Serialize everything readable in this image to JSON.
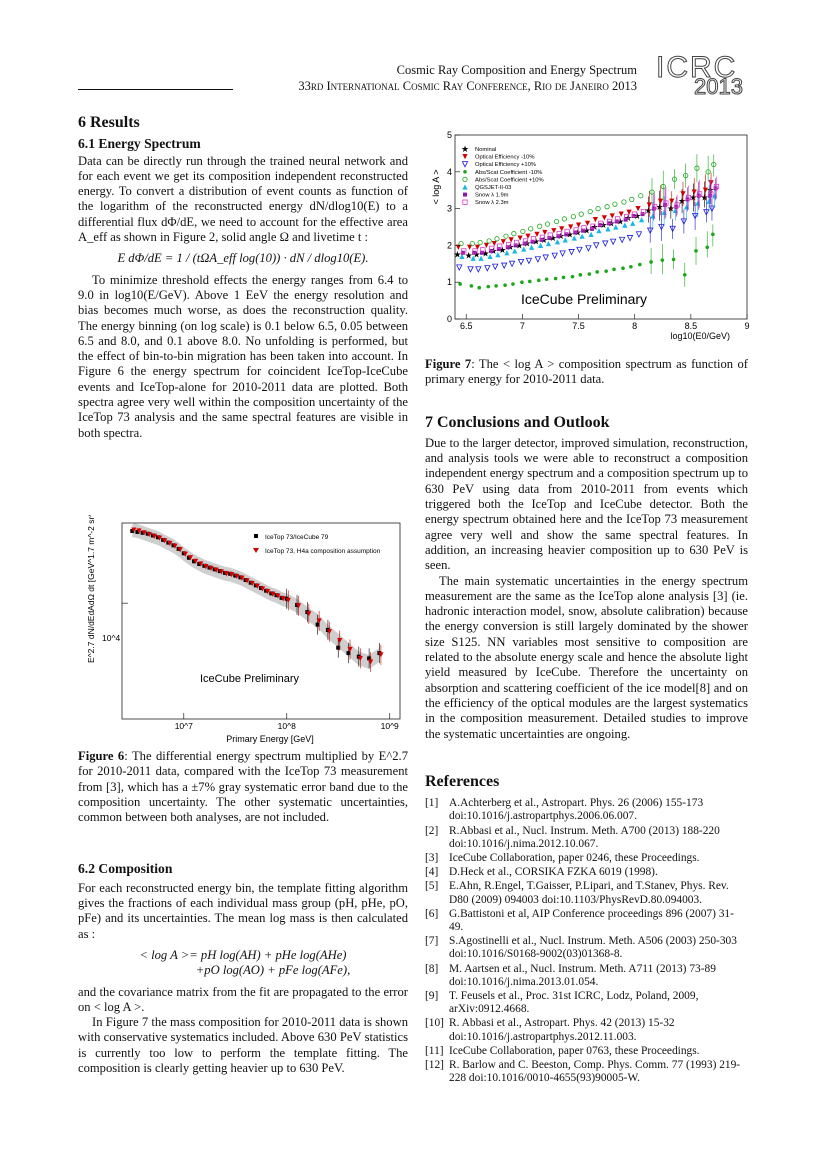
{
  "header": {
    "line1": "Cosmic Ray Composition and Energy Spectrum",
    "line2": "33rd International Cosmic Ray Conference, Rio de Janeiro 2013",
    "logo_top": "ICRC",
    "logo_bottom": "2013"
  },
  "section6": {
    "title": "6   Results",
    "sub1": "6.1   Energy Spectrum",
    "p1": "Data can be directly run through the trained neural network and for each event we get its composition independent reconstructed energy. To convert a distribution of event counts as function of the logarithm of the reconstructed energy dN/dlog10(E) to a differential flux dΦ/dE, we need to account for the effective area A_eff as shown in Figure 2, solid angle Ω and livetime t :",
    "eq1": "E dΦ/dE = 1 / (tΩA_eff log(10)) · dN / dlog10(E).",
    "p2": "To minimize threshold effects the energy ranges from 6.4 to 9.0 in log10(E/GeV). Above 1 EeV the energy resolution and bias becomes much worse, as does the reconstruction quality. The energy binning (on log scale) is 0.1 below 6.5, 0.05 between 6.5 and 8.0, and 0.1 above 8.0. No unfolding is performed, but the effect of bin-to-bin migration has been taken into account. In Figure 6 the energy spectrum for coincident IceTop-IceCube events and IceTop-alone for 2010-2011 data are plotted. Both spectra agree very well within the composition uncertainty of the IceTop 73 analysis and the same spectral features are visible in both spectra.",
    "fig6_caption_label": "Figure 6",
    "fig6_caption": ": The differential energy spectrum multiplied by E^2.7 for 2010-2011 data, compared with the IceTop 73 measurement from [3], which has a ±7% gray systematic error band due to the composition uncertainty. The other systematic uncertainties, common between both analyses, are not included.",
    "sub2": "6.2   Composition",
    "p3": "For each reconstructed energy bin, the template fitting algorithm gives the fractions of each individual mass group (pH, pHe, pO, pFe) and its uncertainties. The mean log mass is then calculated as :",
    "eq2a": "< log A >= pH log(AH) + pHe log(AHe)",
    "eq2b": "+pO log(AO) + pFe log(AFe),",
    "p4": "and the covariance matrix from the fit are propagated to the error on < log A >.",
    "p5": "In Figure 7 the mass composition for 2010-2011 data is shown with conservative systematics included. Above 630 PeV statistics is currently too low to perform the template fitting. The composition is clearly getting heavier up to 630 PeV."
  },
  "fig7_caption_label": "Figure 7",
  "fig7_caption": ": The < log A > composition spectrum as function of primary energy for 2010-2011 data.",
  "section7": {
    "title": "7   Conclusions and Outlook",
    "p1": "Due to the larger detector, improved simulation, reconstruction, and analysis tools we were able to reconstruct a composition independent energy spectrum and a composition spectrum up to 630 PeV using data from 2010-2011 from events which triggered both the IceTop and IceCube detector. Both the energy spectrum obtained here and the IceTop 73 measurement agree very well and show the same spectral features. In addition, an increasing heavier composition up to 630 PeV is seen.",
    "p2": "The main systematic uncertainties in the energy spectrum measurement are the same as the IceTop alone analysis [3] (ie. hadronic interaction model, snow, absolute calibration) because the energy conversion is still largely dominated by the shower size S125. NN variables most sensitive to composition are related to the absolute energy scale and hence the absolute light yield measured by IceCube. Therefore the uncertainty on absorption and scattering coefficient of the ice model[8] and on the efficiency of the optical modules are the largest systematics in the composition measurement. Detailed studies to improve the systematic uncertainties are ongoing."
  },
  "references": {
    "title": "References",
    "items": [
      {
        "n": "[1]",
        "t": "A.Achterberg et al., Astropart. Phys. 26 (2006) 155-173 doi:10.1016/j.astropartphys.2006.06.007."
      },
      {
        "n": "[2]",
        "t": "R.Abbasi et al., Nucl. Instrum. Meth. A700 (2013) 188-220 doi:10.1016/j.nima.2012.10.067."
      },
      {
        "n": "[3]",
        "t": "IceCube Collaboration, paper 0246, these Proceedings."
      },
      {
        "n": "[4]",
        "t": "D.Heck et al., CORSIKA FZKA 6019 (1998)."
      },
      {
        "n": "[5]",
        "t": "E.Ahn, R.Engel, T.Gaisser, P.Lipari, and T.Stanev, Phys. Rev. D80 (2009) 094003 doi:10.1103/PhysRevD.80.094003."
      },
      {
        "n": "[6]",
        "t": "G.Battistoni et al, AIP Conference proceedings 896 (2007) 31-49."
      },
      {
        "n": "[7]",
        "t": "S.Agostinelli et al., Nucl. Instrum. Meth. A506 (2003) 250-303 doi:10.1016/S0168-9002(03)01368-8."
      },
      {
        "n": "[8]",
        "t": "M. Aartsen et al., Nucl. Instrum. Meth. A711 (2013) 73-89 doi:10.1016/j.nima.2013.01.054."
      },
      {
        "n": "[9]",
        "t": "T. Feusels et al., Proc. 31st ICRC, Lodz, Poland, 2009, arXiv:0912.4668."
      },
      {
        "n": "[10]",
        "t": "R. Abbasi et al., Astropart. Phys. 42 (2013) 15-32 doi:10.1016/j.astropartphys.2012.11.003."
      },
      {
        "n": "[11]",
        "t": "IceCube Collaboration, paper 0763, these Proceedings."
      },
      {
        "n": "[12]",
        "t": "R. Barlow and C. Beeston, Comp. Phys. Comm. 77 (1993) 219-228 doi:10.1016/0010-4655(93)90005-W."
      }
    ]
  },
  "chart_data": [
    {
      "id": "fig7",
      "type": "scatter",
      "ylabel": "< log A >",
      "xlabel": "log10(E0/GeV)",
      "xlim": [
        6.4,
        9.0
      ],
      "ylim": [
        0,
        5
      ],
      "xticks": [
        6.5,
        7,
        7.5,
        8,
        8.5,
        9
      ],
      "yticks": [
        0,
        1,
        2,
        3,
        4,
        5
      ],
      "annotation": "IceCube Preliminary",
      "legend_position": "top-left",
      "x": [
        6.45,
        6.55,
        6.62,
        6.7,
        6.77,
        6.85,
        6.92,
        7.0,
        7.07,
        7.15,
        7.22,
        7.3,
        7.37,
        7.45,
        7.52,
        7.6,
        7.67,
        7.75,
        7.82,
        7.9,
        7.97,
        8.05,
        8.15,
        8.25,
        8.35,
        8.45,
        8.55,
        8.65,
        8.7
      ],
      "series": [
        {
          "name": "Nominal",
          "color": "#000000",
          "marker": "star",
          "values": [
            1.75,
            1.72,
            1.75,
            1.78,
            1.85,
            1.88,
            1.95,
            2.0,
            2.05,
            2.1,
            2.15,
            2.2,
            2.25,
            2.3,
            2.35,
            2.4,
            2.5,
            2.55,
            2.6,
            2.65,
            2.75,
            2.8,
            2.95,
            3.05,
            3.0,
            3.2,
            3.3,
            3.3,
            3.5
          ]
        },
        {
          "name": "Optical Efficiency -10%",
          "color": "#d40000",
          "marker": "tri-down-filled",
          "values": [
            1.95,
            1.95,
            1.95,
            2.0,
            2.05,
            2.1,
            2.15,
            2.2,
            2.25,
            2.3,
            2.35,
            2.4,
            2.45,
            2.5,
            2.55,
            2.6,
            2.7,
            2.75,
            2.8,
            2.85,
            2.9,
            3.0,
            3.1,
            3.2,
            3.2,
            3.4,
            3.45,
            3.5,
            3.7
          ]
        },
        {
          "name": "Optical Efficiency +10%",
          "color": "#1a1adc",
          "marker": "tri-down-open",
          "values": [
            1.4,
            1.35,
            1.35,
            1.38,
            1.42,
            1.45,
            1.5,
            1.55,
            1.58,
            1.62,
            1.67,
            1.72,
            1.78,
            1.82,
            1.88,
            1.92,
            2.0,
            2.05,
            2.1,
            2.15,
            2.2,
            2.3,
            2.4,
            2.5,
            2.45,
            2.65,
            2.8,
            2.9,
            3.0
          ]
        },
        {
          "name": "Abs/Scat Coefficient -10%",
          "color": "#1aa81a",
          "marker": "dot",
          "values": [
            0.95,
            0.9,
            0.85,
            0.88,
            0.9,
            0.92,
            0.95,
            1.0,
            1.02,
            1.05,
            1.08,
            1.1,
            1.13,
            1.15,
            1.2,
            1.22,
            1.28,
            1.3,
            1.35,
            1.38,
            1.42,
            1.48,
            1.55,
            1.6,
            1.62,
            1.2,
            1.85,
            1.95,
            2.3
          ]
        },
        {
          "name": "Abs/Scat Coefficient +10%",
          "color": "#1aa81a",
          "marker": "circle-open",
          "values": [
            2.05,
            2.05,
            2.08,
            2.12,
            2.18,
            2.25,
            2.32,
            2.38,
            2.45,
            2.52,
            2.58,
            2.65,
            2.72,
            2.78,
            2.85,
            2.92,
            3.0,
            3.05,
            3.12,
            3.18,
            3.25,
            3.35,
            3.45,
            3.6,
            3.8,
            3.9,
            4.1,
            4.0,
            4.2
          ]
        },
        {
          "name": "QGSJET-II-03",
          "color": "#16b6e8",
          "marker": "tri-up",
          "values": [
            1.7,
            1.65,
            1.65,
            1.7,
            1.75,
            1.8,
            1.85,
            1.9,
            1.95,
            2.0,
            2.05,
            2.1,
            2.15,
            2.2,
            2.25,
            2.3,
            2.4,
            2.45,
            2.5,
            2.55,
            2.6,
            2.7,
            2.8,
            2.9,
            2.95,
            3.05,
            3.15,
            3.2,
            3.35
          ]
        },
        {
          "name": "Snow λ 1.9m",
          "color": "#8a1aa8",
          "marker": "square-filled",
          "values": [
            1.8,
            1.8,
            1.8,
            1.85,
            1.9,
            1.95,
            2.0,
            2.05,
            2.1,
            2.15,
            2.2,
            2.25,
            2.3,
            2.35,
            2.4,
            2.45,
            2.55,
            2.6,
            2.65,
            2.7,
            2.8,
            2.85,
            3.0,
            3.1,
            3.05,
            3.25,
            3.35,
            3.35,
            3.55
          ]
        },
        {
          "name": "Snow λ 2.3m",
          "color": "#e03cc8",
          "marker": "square-open",
          "values": [
            1.85,
            1.85,
            1.88,
            1.92,
            1.98,
            2.02,
            2.08,
            2.12,
            2.18,
            2.22,
            2.28,
            2.32,
            2.38,
            2.42,
            2.48,
            2.52,
            2.6,
            2.65,
            2.72,
            2.78,
            2.85,
            2.92,
            3.05,
            3.15,
            3.1,
            3.3,
            3.4,
            3.4,
            3.6
          ]
        }
      ]
    },
    {
      "id": "fig6",
      "type": "scatter",
      "ylabel": "E^2.7 dN/dEdAdΩ dt [GeV^1.7 m^-2 sr^-1 s^-1]",
      "xlabel": "Primary Energy [GeV]",
      "xlim": [
        6.4,
        9.1
      ],
      "ylog_lim": [
        3.35,
        4.45
      ],
      "xtick_labels": [
        "10^7",
        "10^8",
        "10^9"
      ],
      "xtick_values": [
        7,
        8,
        9
      ],
      "ytick_label": "10^4",
      "annotation": "IceCube Preliminary",
      "legend_position": "top-right",
      "x": [
        6.5,
        6.55,
        6.6,
        6.65,
        6.7,
        6.75,
        6.8,
        6.85,
        6.9,
        6.95,
        7.0,
        7.05,
        7.1,
        7.15,
        7.2,
        7.25,
        7.3,
        7.35,
        7.4,
        7.45,
        7.5,
        7.55,
        7.6,
        7.65,
        7.7,
        7.75,
        7.8,
        7.85,
        7.9,
        7.95,
        8.0,
        8.1,
        8.2,
        8.3,
        8.4,
        8.5,
        8.6,
        8.7,
        8.8,
        8.9
      ],
      "series": [
        {
          "name": "IceTop 73/IceCube 79",
          "color": "#000000",
          "marker": "square-filled",
          "log_values": [
            4.405,
            4.4,
            4.395,
            4.39,
            4.38,
            4.37,
            4.355,
            4.34,
            4.325,
            4.305,
            4.28,
            4.255,
            4.235,
            4.22,
            4.21,
            4.2,
            4.19,
            4.18,
            4.17,
            4.165,
            4.155,
            4.145,
            4.13,
            4.115,
            4.1,
            4.085,
            4.07,
            4.055,
            4.045,
            4.03,
            4.025,
            3.99,
            3.95,
            3.88,
            3.85,
            3.75,
            3.72,
            3.7,
            3.69,
            3.72
          ]
        },
        {
          "name": "IceTop 73, H4a composition assumption",
          "color": "#d40000",
          "marker": "tri-down-filled",
          "log_values": [
            4.41,
            4.405,
            4.395,
            4.385,
            4.375,
            4.365,
            4.35,
            4.335,
            4.32,
            4.3,
            4.275,
            4.255,
            4.235,
            4.22,
            4.205,
            4.195,
            4.185,
            4.175,
            4.165,
            4.16,
            4.15,
            4.14,
            4.125,
            4.11,
            4.095,
            4.08,
            4.065,
            4.05,
            4.04,
            4.025,
            4.015,
            3.985,
            3.94,
            3.9,
            3.84,
            3.79,
            3.74,
            3.69,
            3.67,
            3.71
          ]
        }
      ]
    }
  ]
}
